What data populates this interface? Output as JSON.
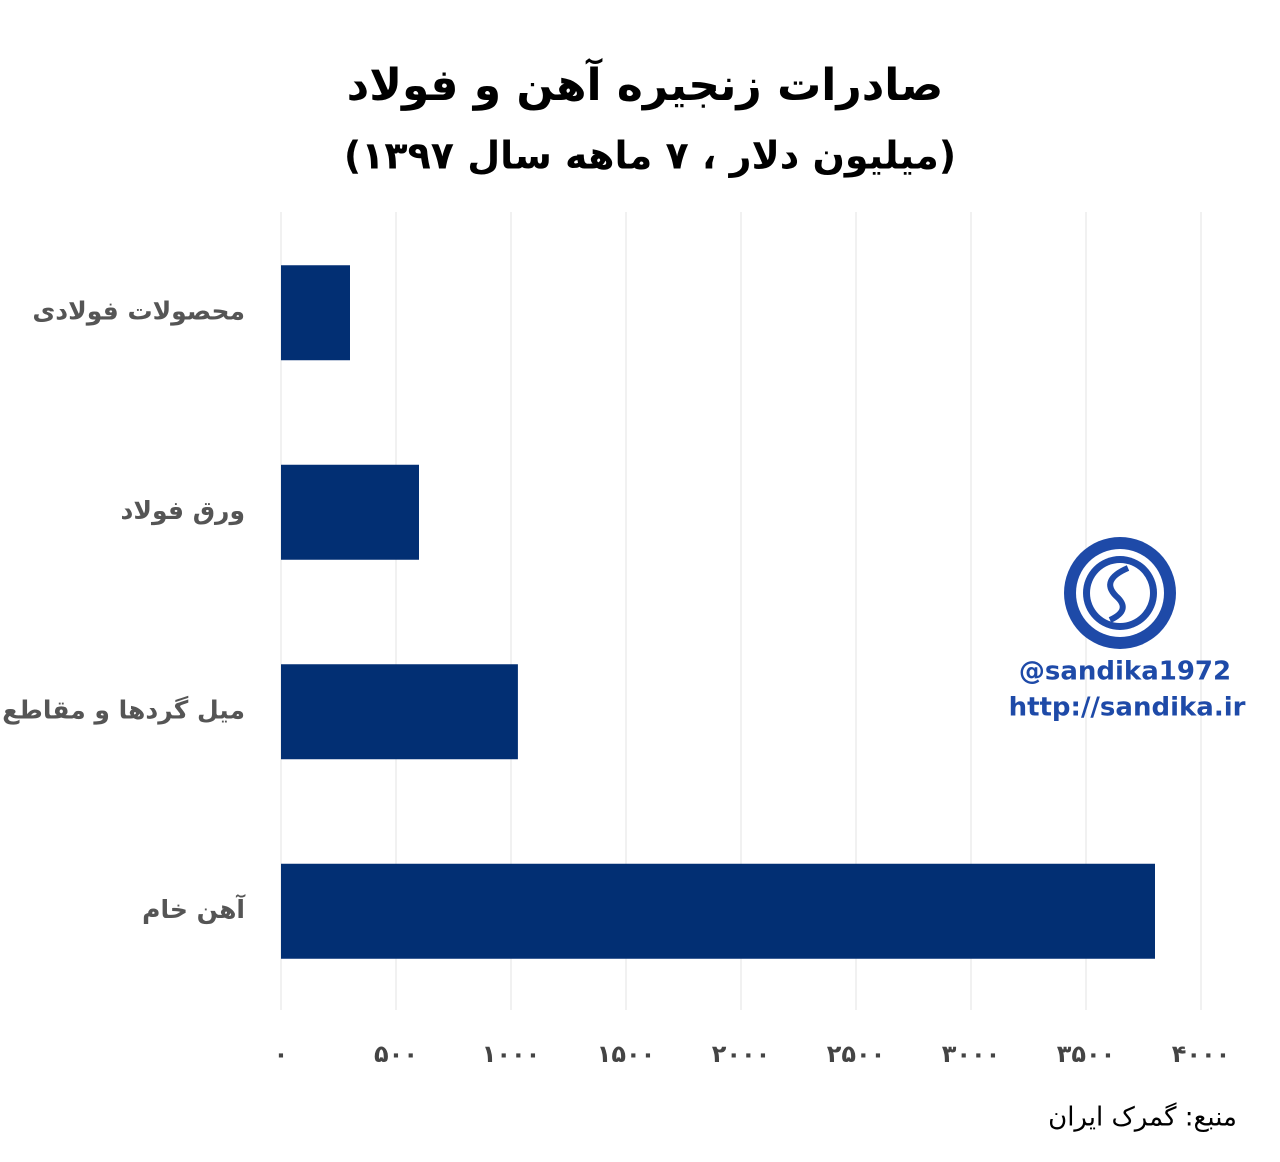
{
  "chart_data": {
    "type": "bar",
    "orientation": "horizontal",
    "title": "صادرات زنجیره آهن و فولاد",
    "subtitle": "(میلیون دلار ، ۷ ماهه سال ۱۳۹۷)",
    "categories": [
      "محصولات فولادی",
      "ورق فولاد",
      "میل گردها و مقاطع",
      "آهن خام"
    ],
    "values": [
      300,
      600,
      1030,
      3800
    ],
    "color": "#022f73",
    "xlim": [
      0,
      4000
    ],
    "xticks": [
      {
        "value": 0,
        "label": "۰"
      },
      {
        "value": 500,
        "label": "۵۰۰"
      },
      {
        "value": 1000,
        "label": "۱۰۰۰"
      },
      {
        "value": 1500,
        "label": "۱۵۰۰"
      },
      {
        "value": 2000,
        "label": "۲۰۰۰"
      },
      {
        "value": 2500,
        "label": "۲۵۰۰"
      },
      {
        "value": 3000,
        "label": "۳۰۰۰"
      },
      {
        "value": 3500,
        "label": "۳۵۰۰"
      },
      {
        "value": 4000,
        "label": "۴۰۰۰"
      }
    ],
    "grid": true,
    "source": "منبع: گمرک ایران",
    "watermark": [
      "@sandika1972",
      "http://sandika.ir"
    ]
  }
}
